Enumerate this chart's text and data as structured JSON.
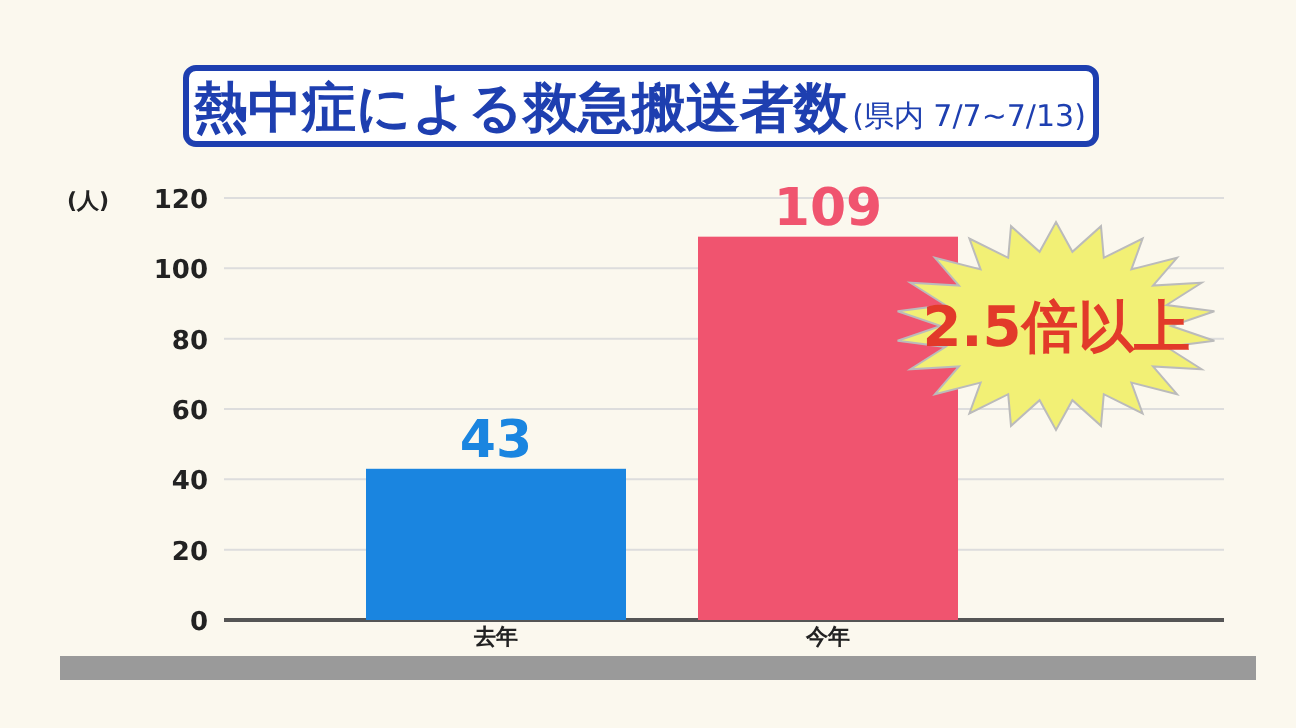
{
  "chart_data": {
    "type": "bar",
    "title": "熱中症による救急搬送者数",
    "subtitle": "(県内 7/7~7/13)",
    "ylabel": "(人)",
    "categories": [
      "去年",
      "今年"
    ],
    "values": [
      43,
      109
    ],
    "colors": [
      "#1a85e0",
      "#f0546f"
    ],
    "data_labels": true,
    "ylim": [
      0,
      120
    ],
    "yticks": [
      0,
      20,
      40,
      60,
      80,
      100,
      120
    ],
    "grid": "y",
    "annotations": [
      "2.5倍以上"
    ]
  }
}
